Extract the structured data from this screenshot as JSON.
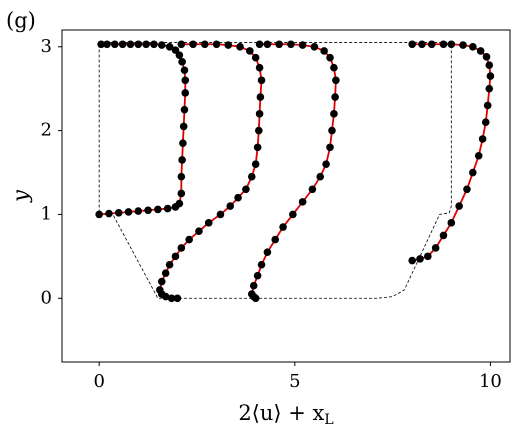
{
  "chart_data": {
    "type": "line",
    "panel_label": "(g)",
    "xlabel": "2⟨u⟩ + x",
    "xlabel_subscript": "L",
    "ylabel": "y",
    "xlim": [
      -0.95,
      10.5
    ],
    "ylim": [
      -0.76,
      3.2
    ],
    "xticks": [
      0,
      5,
      10
    ],
    "yticks": [
      0,
      1,
      2,
      3
    ],
    "grid": false,
    "series": [
      {
        "color": "#000000",
        "dashed": true,
        "markers": false,
        "x": [
          0,
          9,
          9,
          8.95,
          8.7,
          7.8,
          7.5,
          7.1,
          1.5,
          0.35,
          0,
          0
        ],
        "y": [
          3.05,
          3.05,
          1.1,
          1.02,
          1.0,
          0.1,
          0.02,
          0,
          0,
          1.0,
          1.0,
          3.05
        ]
      },
      {
        "color": "#e00000",
        "marker_color": "#000000",
        "markers": true,
        "x": [
          0,
          0.25,
          0.5,
          0.75,
          1.0,
          1.25,
          1.5,
          1.75,
          1.95,
          2.05,
          2.1,
          2.1,
          2.12,
          2.14,
          2.16,
          2.18,
          2.2,
          2.2,
          2.18,
          2.12,
          2.05,
          1.95,
          1.8,
          1.6,
          1.4,
          1.2,
          1.0,
          0.8,
          0.6,
          0.4,
          0.2,
          0.05
        ],
        "y": [
          1.0,
          1.01,
          1.02,
          1.03,
          1.04,
          1.05,
          1.06,
          1.07,
          1.09,
          1.13,
          1.25,
          1.45,
          1.65,
          1.85,
          2.05,
          2.25,
          2.45,
          2.6,
          2.72,
          2.82,
          2.9,
          2.96,
          3.0,
          3.02,
          3.03,
          3.03,
          3.03,
          3.03,
          3.03,
          3.03,
          3.03,
          3.03
        ]
      },
      {
        "color": "#e00000",
        "marker_color": "#000000",
        "markers": true,
        "x": [
          2.0,
          1.85,
          1.7,
          1.6,
          1.55,
          1.6,
          1.7,
          1.8,
          1.95,
          2.1,
          2.3,
          2.55,
          2.8,
          3.1,
          3.35,
          3.55,
          3.75,
          3.9,
          4.0,
          4.05,
          4.08,
          4.1,
          4.12,
          4.15,
          4.1,
          4.0,
          3.85,
          3.6,
          3.3,
          3.0,
          2.7,
          2.4,
          2.1
        ],
        "y": [
          0.0,
          0.0,
          0.02,
          0.05,
          0.1,
          0.2,
          0.3,
          0.4,
          0.5,
          0.6,
          0.7,
          0.8,
          0.9,
          1.0,
          1.1,
          1.2,
          1.3,
          1.45,
          1.6,
          1.8,
          2.0,
          2.2,
          2.4,
          2.6,
          2.75,
          2.87,
          2.95,
          3.0,
          3.02,
          3.03,
          3.03,
          3.03,
          3.03
        ]
      },
      {
        "color": "#e00000",
        "marker_color": "#000000",
        "markers": true,
        "x": [
          4.0,
          3.95,
          3.9,
          3.95,
          4.05,
          4.15,
          4.3,
          4.5,
          4.7,
          4.95,
          5.2,
          5.45,
          5.65,
          5.8,
          5.9,
          5.95,
          6.0,
          6.03,
          6.05,
          6.0,
          5.9,
          5.75,
          5.5,
          5.2,
          4.9,
          4.6,
          4.3,
          4.1
        ],
        "y": [
          0.0,
          0.02,
          0.05,
          0.15,
          0.27,
          0.4,
          0.55,
          0.7,
          0.85,
          1.0,
          1.15,
          1.3,
          1.45,
          1.6,
          1.8,
          2.0,
          2.2,
          2.4,
          2.6,
          2.75,
          2.87,
          2.95,
          3.0,
          3.02,
          3.03,
          3.03,
          3.03,
          3.03
        ]
      },
      {
        "color": "#e00000",
        "marker_color": "#000000",
        "markers": true,
        "x": [
          8.0,
          8.2,
          8.4,
          8.6,
          8.8,
          9.0,
          9.2,
          9.4,
          9.55,
          9.7,
          9.8,
          9.88,
          9.93,
          9.97,
          10.0,
          9.97,
          9.9,
          9.75,
          9.55,
          9.3,
          9.0,
          8.8,
          8.5,
          8.25,
          8.0
        ],
        "y": [
          0.45,
          0.47,
          0.5,
          0.6,
          0.75,
          0.9,
          1.1,
          1.3,
          1.5,
          1.7,
          1.9,
          2.1,
          2.3,
          2.5,
          2.65,
          2.78,
          2.88,
          2.95,
          3.0,
          3.02,
          3.03,
          3.03,
          3.03,
          3.03,
          3.03
        ]
      }
    ]
  }
}
